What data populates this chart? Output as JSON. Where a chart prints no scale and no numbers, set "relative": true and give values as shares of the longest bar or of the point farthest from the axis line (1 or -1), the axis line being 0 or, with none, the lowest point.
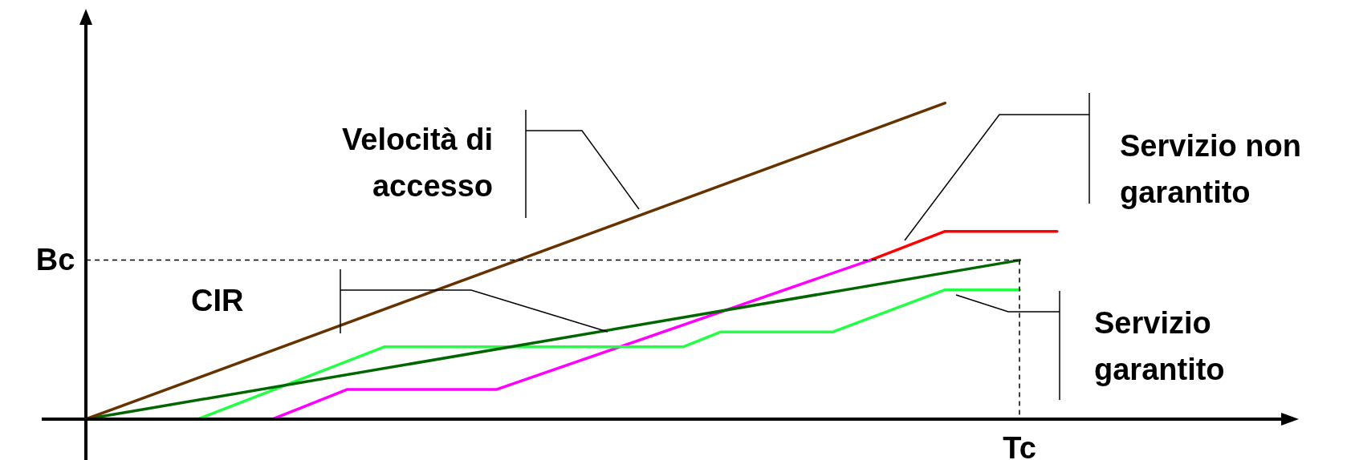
{
  "chart_data": {
    "type": "line",
    "relative": true,
    "legend": false,
    "tick_labels": false,
    "marker": "none",
    "line_style": "solid",
    "categories": [
      null,
      null,
      null,
      null,
      null,
      null,
      null,
      null,
      null,
      null,
      null,
      null,
      null,
      null,
      null,
      null,
      null,
      null,
      null,
      null,
      null,
      null,
      null,
      null,
      null,
      null,
      null,
      null,
      null,
      null,
      null,
      null,
      null
    ],
    "series": [
      {
        "color": "#663300",
        "values": [
          0,
          null,
          null,
          null,
          null,
          null,
          null,
          null,
          null,
          null,
          null,
          null,
          null,
          null,
          null,
          null,
          null,
          null,
          null,
          null,
          null,
          null,
          null,
          1,
          null,
          null,
          null,
          null,
          null,
          null,
          null,
          null,
          null
        ]
      },
      {
        "color": "#006600",
        "values": [
          0,
          null,
          null,
          null,
          null,
          null,
          null,
          null,
          null,
          null,
          null,
          null,
          null,
          null,
          null,
          null,
          null,
          null,
          null,
          null,
          null,
          null,
          null,
          null,
          null,
          0.503,
          null,
          null,
          null,
          null,
          null,
          null,
          null
        ]
      },
      {
        "color": "#22ff44",
        "values": [
          null,
          null,
          null,
          0,
          null,
          null,
          null,
          null,
          0.229,
          null,
          null,
          null,
          null,
          null,
          null,
          null,
          0.229,
          0.276,
          null,
          null,
          0.276,
          null,
          null,
          0.409,
          null,
          0.409,
          null,
          null,
          null,
          null,
          null,
          null,
          null
        ]
      },
      {
        "color": "#ff00ff",
        "values": [
          null,
          null,
          null,
          null,
          null,
          0,
          null,
          0.094,
          null,
          null,
          null,
          0.094,
          null,
          null,
          null,
          null,
          null,
          null,
          null,
          null,
          null,
          0.503,
          null,
          null,
          null,
          null,
          null,
          null,
          null,
          null,
          null,
          null,
          null
        ]
      },
      {
        "color": "#ff0000",
        "values": [
          null,
          null,
          null,
          null,
          null,
          null,
          null,
          null,
          null,
          null,
          null,
          null,
          null,
          null,
          null,
          null,
          null,
          null,
          null,
          null,
          null,
          0.503,
          null,
          0.594,
          null,
          null,
          0.594,
          null,
          null,
          null,
          null,
          null,
          null
        ]
      }
    ],
    "ref_lines": [
      {
        "axis": "y",
        "value": 0.503,
        "label": "Bc",
        "line_style": "dashed"
      }
    ],
    "annotations": [
      "Velocità di accesso",
      "CIR",
      "Servizio non garantito",
      "Servizio garantito",
      "Tc"
    ]
  }
}
